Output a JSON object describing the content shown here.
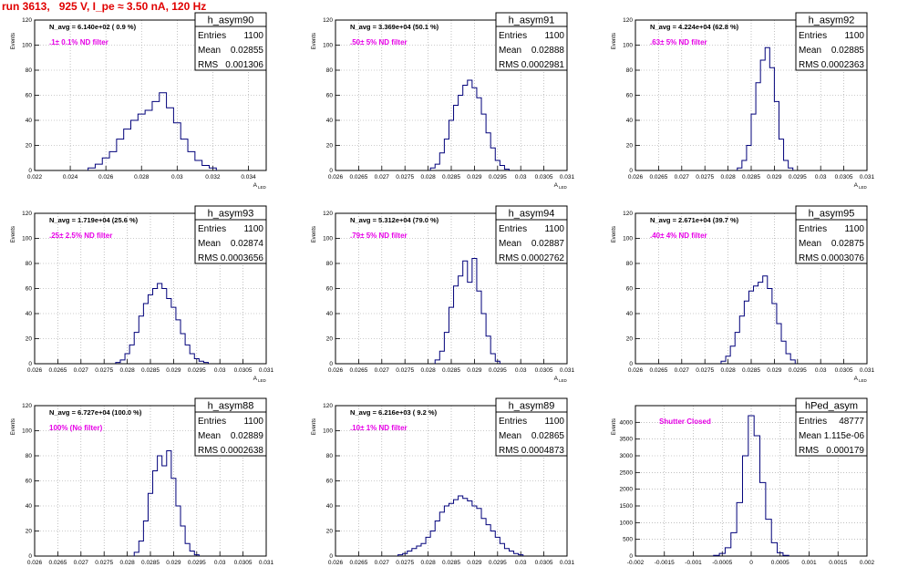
{
  "page": {
    "title": "run 3613,   925 V, I_pe ≈ 3.50 nA, 120 Hz"
  },
  "common": {
    "ylabel": "Events",
    "xlabel": "A",
    "xlabel_sub": "LED",
    "stats_labels": [
      "Entries",
      "Mean",
      "RMS"
    ]
  },
  "colors": {
    "histogram": "#00007a",
    "annotation": "#e600e6",
    "title": "#e00000",
    "grid": "#9a9a9a"
  },
  "chart_data": [
    {
      "type": "histogram",
      "name": "h_asym90",
      "n_avg": "N_avg = 6.140e+02 ( 0.9 %)",
      "filter": ".1± 0.1% ND filter",
      "entries": "1100",
      "mean": "0.02855",
      "rms": "0.001306",
      "xlim": [
        0.022,
        0.035
      ],
      "ylim": [
        0,
        120
      ],
      "xticks": [
        "0.022",
        "0.024",
        "0.026",
        "0.028",
        "0.03",
        "0.032",
        "0.034"
      ],
      "xtick_values": [
        0.022,
        0.024,
        0.026,
        0.028,
        0.03,
        0.032,
        0.034
      ],
      "yticks": [
        "0",
        "20",
        "40",
        "60",
        "80",
        "100",
        "120"
      ],
      "ytick_values": [
        0,
        20,
        40,
        60,
        80,
        100,
        120
      ],
      "x": [
        0.0252,
        0.0256,
        0.026,
        0.0264,
        0.0268,
        0.0272,
        0.0276,
        0.028,
        0.0284,
        0.0288,
        0.0292,
        0.0296,
        0.03,
        0.0304,
        0.0308,
        0.0312,
        0.0316,
        0.032
      ],
      "values": [
        2,
        5,
        10,
        15,
        25,
        33,
        40,
        45,
        48,
        55,
        62,
        50,
        38,
        25,
        15,
        8,
        4,
        2
      ]
    },
    {
      "type": "histogram",
      "name": "h_asym91",
      "n_avg": "N_avg = 3.369e+04 (50.1 %)",
      "filter": ".50± 5% ND filter",
      "entries": "1100",
      "mean": "0.02888",
      "rms": "0.0002981",
      "xlim": [
        0.026,
        0.031
      ],
      "ylim": [
        0,
        120
      ],
      "xticks": [
        "0.026",
        "0.0265",
        "0.027",
        "0.0275",
        "0.028",
        "0.0285",
        "0.029",
        "0.0295",
        "0.03",
        "0.0305",
        "0.031"
      ],
      "xtick_values": [
        0.026,
        0.0265,
        0.027,
        0.0275,
        0.028,
        0.0285,
        0.029,
        0.0295,
        0.03,
        0.0305,
        0.031
      ],
      "yticks": [
        "0",
        "20",
        "40",
        "60",
        "80",
        "100",
        "120"
      ],
      "ytick_values": [
        0,
        20,
        40,
        60,
        80,
        100,
        120
      ],
      "x": [
        0.0281,
        0.0282,
        0.0283,
        0.0284,
        0.0285,
        0.0286,
        0.0287,
        0.0288,
        0.0289,
        0.029,
        0.0291,
        0.0292,
        0.0293,
        0.0294,
        0.0295,
        0.0296,
        0.0297
      ],
      "values": [
        2,
        5,
        14,
        25,
        40,
        52,
        60,
        68,
        72,
        66,
        58,
        45,
        30,
        18,
        8,
        4,
        1
      ]
    },
    {
      "type": "histogram",
      "name": "h_asym92",
      "n_avg": "N_avg = 4.224e+04 (62.8 %)",
      "filter": ".63± 5% ND filter",
      "entries": "1100",
      "mean": "0.02885",
      "rms": "0.0002363",
      "xlim": [
        0.026,
        0.031
      ],
      "ylim": [
        0,
        120
      ],
      "xticks": [
        "0.026",
        "0.0265",
        "0.027",
        "0.0275",
        "0.028",
        "0.0285",
        "0.029",
        "0.0295",
        "0.03",
        "0.0305",
        "0.031"
      ],
      "xtick_values": [
        0.026,
        0.0265,
        0.027,
        0.0275,
        0.028,
        0.0285,
        0.029,
        0.0295,
        0.03,
        0.0305,
        0.031
      ],
      "yticks": [
        "0",
        "20",
        "40",
        "60",
        "80",
        "100",
        "120"
      ],
      "ytick_values": [
        0,
        20,
        40,
        60,
        80,
        100,
        120
      ],
      "x": [
        0.02825,
        0.02835,
        0.02845,
        0.02855,
        0.02865,
        0.02875,
        0.02885,
        0.02895,
        0.02905,
        0.02915,
        0.02925,
        0.02935
      ],
      "values": [
        2,
        8,
        20,
        45,
        70,
        88,
        98,
        82,
        55,
        25,
        8,
        2
      ]
    },
    {
      "type": "histogram",
      "name": "h_asym93",
      "n_avg": "N_avg = 1.719e+04 (25.6 %)",
      "filter": ".25± 2.5% ND filter",
      "entries": "1100",
      "mean": "0.02874",
      "rms": "0.0003656",
      "xlim": [
        0.026,
        0.031
      ],
      "ylim": [
        0,
        120
      ],
      "xticks": [
        "0.026",
        "0.0265",
        "0.027",
        "0.0275",
        "0.028",
        "0.0285",
        "0.029",
        "0.0295",
        "0.03",
        "0.0305",
        "0.031"
      ],
      "xtick_values": [
        0.026,
        0.0265,
        0.027,
        0.0275,
        0.028,
        0.0285,
        0.029,
        0.0295,
        0.03,
        0.0305,
        0.031
      ],
      "yticks": [
        "0",
        "20",
        "40",
        "60",
        "80",
        "100",
        "120"
      ],
      "ytick_values": [
        0,
        20,
        40,
        60,
        80,
        100,
        120
      ],
      "x": [
        0.0278,
        0.0279,
        0.028,
        0.0281,
        0.0282,
        0.0283,
        0.0284,
        0.0285,
        0.0286,
        0.0287,
        0.0288,
        0.0289,
        0.029,
        0.0291,
        0.0292,
        0.0293,
        0.0294,
        0.0295,
        0.0296,
        0.0297
      ],
      "values": [
        1,
        3,
        8,
        15,
        25,
        38,
        48,
        55,
        60,
        64,
        60,
        52,
        45,
        35,
        24,
        15,
        8,
        4,
        2,
        1
      ]
    },
    {
      "type": "histogram",
      "name": "h_asym94",
      "n_avg": "N_avg = 5.312e+04 (79.0 %)",
      "filter": ".79± 5% ND filter",
      "entries": "1100",
      "mean": "0.02887",
      "rms": "0.0002762",
      "xlim": [
        0.026,
        0.031
      ],
      "ylim": [
        0,
        120
      ],
      "xticks": [
        "0.026",
        "0.0265",
        "0.027",
        "0.0275",
        "0.028",
        "0.0285",
        "0.029",
        "0.0295",
        "0.03",
        "0.0305",
        "0.031"
      ],
      "xtick_values": [
        0.026,
        0.0265,
        0.027,
        0.0275,
        0.028,
        0.0285,
        0.029,
        0.0295,
        0.03,
        0.0305,
        0.031
      ],
      "yticks": [
        "0",
        "20",
        "40",
        "60",
        "80",
        "100",
        "120"
      ],
      "ytick_values": [
        0,
        20,
        40,
        60,
        80,
        100,
        120
      ],
      "x": [
        0.0282,
        0.0283,
        0.0284,
        0.0285,
        0.0286,
        0.0287,
        0.0288,
        0.0289,
        0.029,
        0.0291,
        0.0292,
        0.0293,
        0.0294,
        0.0295
      ],
      "values": [
        3,
        10,
        25,
        45,
        62,
        70,
        82,
        65,
        84,
        58,
        40,
        22,
        8,
        2
      ]
    },
    {
      "type": "histogram",
      "name": "h_asym95",
      "n_avg": "N_avg = 2.671e+04 (39.7 %)",
      "filter": ".40± 4% ND filter",
      "entries": "1100",
      "mean": "0.02875",
      "rms": "0.0003076",
      "xlim": [
        0.026,
        0.031
      ],
      "ylim": [
        0,
        120
      ],
      "xticks": [
        "0.026",
        "0.0265",
        "0.027",
        "0.0275",
        "0.028",
        "0.0285",
        "0.029",
        "0.0295",
        "0.03",
        "0.0305",
        "0.031"
      ],
      "xtick_values": [
        0.026,
        0.0265,
        0.027,
        0.0275,
        0.028,
        0.0285,
        0.029,
        0.0295,
        0.03,
        0.0305,
        0.031
      ],
      "yticks": [
        "0",
        "20",
        "40",
        "60",
        "80",
        "100",
        "120"
      ],
      "ytick_values": [
        0,
        20,
        40,
        60,
        80,
        100,
        120
      ],
      "x": [
        0.0279,
        0.028,
        0.0281,
        0.0282,
        0.0283,
        0.0284,
        0.0285,
        0.0286,
        0.0287,
        0.0288,
        0.0289,
        0.029,
        0.0291,
        0.0292,
        0.0293,
        0.0294
      ],
      "values": [
        2,
        6,
        14,
        25,
        38,
        50,
        58,
        62,
        65,
        70,
        60,
        48,
        32,
        18,
        8,
        3
      ]
    },
    {
      "type": "histogram",
      "name": "h_asym88",
      "n_avg": "N_avg = 6.727e+04 (100.0 %)",
      "filter": "100% (No filter)",
      "entries": "1100",
      "mean": "0.02889",
      "rms": "0.0002638",
      "xlim": [
        0.026,
        0.031
      ],
      "ylim": [
        0,
        120
      ],
      "xticks": [
        "0.026",
        "0.0265",
        "0.027",
        "0.0275",
        "0.028",
        "0.0285",
        "0.029",
        "0.0295",
        "0.03",
        "0.0305",
        "0.031"
      ],
      "xtick_values": [
        0.026,
        0.0265,
        0.027,
        0.0275,
        0.028,
        0.0285,
        0.029,
        0.0295,
        0.03,
        0.0305,
        0.031
      ],
      "yticks": [
        "0",
        "20",
        "40",
        "60",
        "80",
        "100",
        "120"
      ],
      "ytick_values": [
        0,
        20,
        40,
        60,
        80,
        100,
        120
      ],
      "x": [
        0.0282,
        0.0283,
        0.0284,
        0.0285,
        0.0286,
        0.0287,
        0.0288,
        0.0289,
        0.029,
        0.0291,
        0.0292,
        0.0293,
        0.0294,
        0.0295
      ],
      "values": [
        3,
        12,
        28,
        50,
        68,
        80,
        72,
        84,
        62,
        40,
        24,
        10,
        4,
        1
      ]
    },
    {
      "type": "histogram",
      "name": "h_asym89",
      "n_avg": "N_avg = 6.216e+03 ( 9.2 %)",
      "filter": ".10± 1% ND filter",
      "entries": "1100",
      "mean": "0.02865",
      "rms": "0.0004873",
      "xlim": [
        0.026,
        0.031
      ],
      "ylim": [
        0,
        120
      ],
      "xticks": [
        "0.026",
        "0.0265",
        "0.027",
        "0.0275",
        "0.028",
        "0.0285",
        "0.029",
        "0.0295",
        "0.03",
        "0.0305",
        "0.031"
      ],
      "xtick_values": [
        0.026,
        0.0265,
        0.027,
        0.0275,
        0.028,
        0.0285,
        0.029,
        0.0295,
        0.03,
        0.0305,
        0.031
      ],
      "yticks": [
        "0",
        "20",
        "40",
        "60",
        "80",
        "100",
        "120"
      ],
      "ytick_values": [
        0,
        20,
        40,
        60,
        80,
        100,
        120
      ],
      "x": [
        0.0274,
        0.0275,
        0.0276,
        0.0277,
        0.0278,
        0.0279,
        0.028,
        0.0281,
        0.0282,
        0.0283,
        0.0284,
        0.0285,
        0.0286,
        0.0287,
        0.0288,
        0.0289,
        0.029,
        0.0291,
        0.0292,
        0.0293,
        0.0294,
        0.0295,
        0.0296,
        0.0297,
        0.0298,
        0.0299,
        0.03
      ],
      "values": [
        1,
        2,
        4,
        6,
        8,
        10,
        15,
        20,
        28,
        35,
        40,
        42,
        45,
        48,
        46,
        44,
        40,
        38,
        30,
        25,
        20,
        15,
        10,
        6,
        4,
        2,
        1
      ]
    },
    {
      "type": "histogram",
      "name": "hPed_asym",
      "n_avg": "",
      "filter": "Shutter Closed",
      "entries": "48777",
      "mean": "1.115e-06",
      "rms": "0.000179",
      "xlim": [
        -0.002,
        0.002
      ],
      "ylim": [
        0,
        4500
      ],
      "xticks": [
        "-0.002",
        "-0.0015",
        "-0.001",
        "-0.0005",
        "0",
        "0.0005",
        "0.001",
        "0.0015",
        "0.002"
      ],
      "xtick_values": [
        -0.002,
        -0.0015,
        -0.001,
        -0.0005,
        0,
        0.0005,
        0.001,
        0.0015,
        0.002
      ],
      "yticks": [
        "0",
        "500",
        "1000",
        "1500",
        "2000",
        "2500",
        "3000",
        "3500",
        "4000"
      ],
      "ytick_values": [
        0,
        500,
        1000,
        1500,
        2000,
        2500,
        3000,
        3500,
        4000
      ],
      "x": [
        -0.0006,
        -0.0005,
        -0.0004,
        -0.0003,
        -0.0002,
        -0.0001,
        0,
        0.0001,
        0.0002,
        0.0003,
        0.0004,
        0.0005,
        0.0006
      ],
      "values": [
        20,
        80,
        250,
        700,
        1600,
        3000,
        4200,
        3600,
        2200,
        1100,
        400,
        100,
        20
      ]
    }
  ]
}
